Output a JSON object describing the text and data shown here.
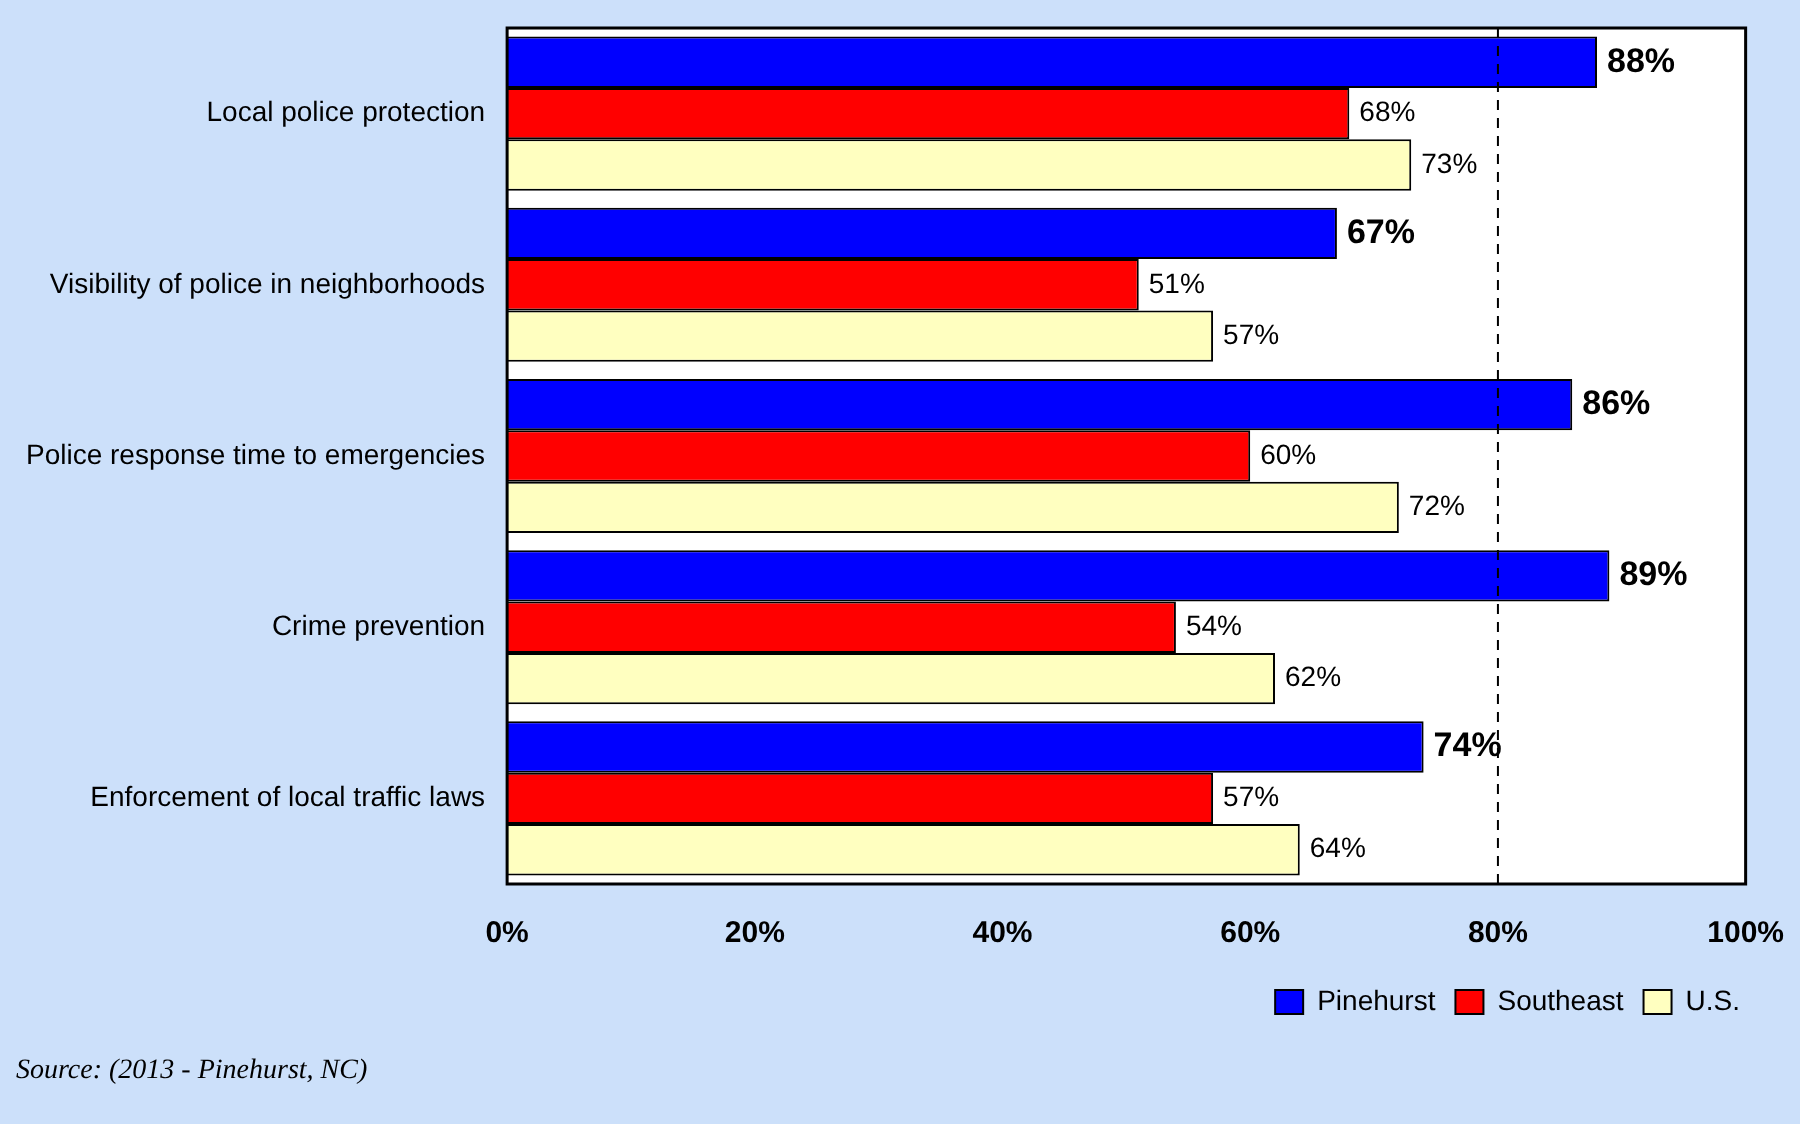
{
  "chart_data": {
    "type": "bar",
    "orientation": "horizontal",
    "categories": [
      "Local police protection",
      "Visibility of police in neighborhoods",
      "Police response time to emergencies",
      "Crime prevention",
      "Enforcement of local traffic laws"
    ],
    "series": [
      {
        "name": "Pinehurst",
        "color": "#0000ff",
        "values": [
          88,
          67,
          86,
          89,
          74
        ],
        "value_labels": [
          "88%",
          "67%",
          "86%",
          "89%",
          "74%"
        ]
      },
      {
        "name": "Southeast",
        "color": "#ff0000",
        "values": [
          68,
          51,
          60,
          54,
          57
        ],
        "value_labels": [
          "68%",
          "51%",
          "60%",
          "54%",
          "57%"
        ]
      },
      {
        "name": "U.S.",
        "color": "#ffffc0",
        "values": [
          73,
          57,
          72,
          62,
          64
        ],
        "value_labels": [
          "73%",
          "57%",
          "72%",
          "62%",
          "64%"
        ]
      }
    ],
    "xlim": [
      0,
      100
    ],
    "xticks": [
      {
        "value": 0,
        "label": "0%"
      },
      {
        "value": 20,
        "label": "20%"
      },
      {
        "value": 40,
        "label": "40%"
      },
      {
        "value": 60,
        "label": "60%"
      },
      {
        "value": 80,
        "label": "80%"
      },
      {
        "value": 100,
        "label": "100%"
      }
    ],
    "grid": false,
    "legend": "bottom right",
    "ref_lines": [
      {
        "axis": "x",
        "value": 80,
        "label": null,
        "color": "#000000",
        "line_style": "dashed"
      }
    ],
    "annotations": [
      "Source: (2013 - Pinehurst, NC)"
    ]
  }
}
